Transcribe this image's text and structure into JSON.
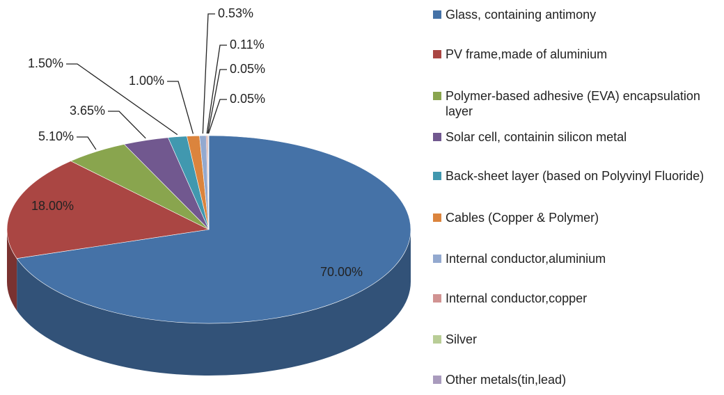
{
  "chart_data": {
    "type": "pie3d",
    "categories": [
      "Glass, containing antimony",
      "PV frame,made of aluminium",
      "Polymer-based adhesive (EVA) encapsulation layer",
      "Solar cell, containin silicon metal",
      "Back-sheet layer (based on Polyvinyl Fluoride)",
      "Cables (Copper & Polymer)",
      "Internal conductor,aluminium",
      "Internal conductor,copper",
      "Silver",
      "Other metals(tin,lead)"
    ],
    "values": [
      70,
      18,
      5.1,
      3.65,
      1.5,
      1.0,
      0.53,
      0.11,
      0.05,
      0.05
    ],
    "value_labels": [
      "70.00%",
      "18.00%",
      "5.10%",
      "3.65%",
      "1.50%",
      "1.00%",
      "0.53%",
      "0.11%",
      "0.05%",
      "0.05%"
    ],
    "colors": [
      "#4572a7",
      "#aa4643",
      "#89a54e",
      "#71588f",
      "#4198af",
      "#db843d",
      "#93a9cf",
      "#d19392",
      "#b9cd96",
      "#a99bbd"
    ],
    "legend": "right"
  }
}
